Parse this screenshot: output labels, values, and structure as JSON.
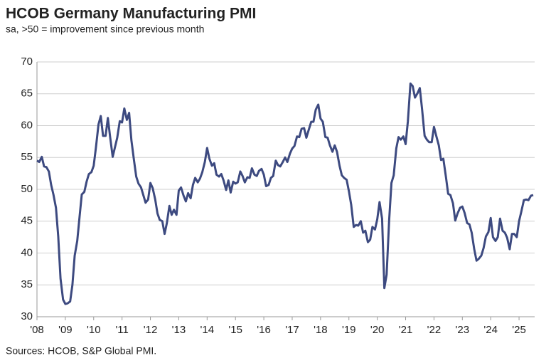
{
  "chart_data": {
    "type": "line",
    "title": "HCOB Germany Manufacturing PMI",
    "subtitle": "sa, >50 = improvement since previous month",
    "source": "Sources: HCOB, S&P Global PMI.",
    "x": [
      2008,
      2008.08,
      2008.17,
      2008.25,
      2008.33,
      2008.42,
      2008.5,
      2008.58,
      2008.67,
      2008.75,
      2008.83,
      2008.92,
      2009,
      2009.08,
      2009.17,
      2009.25,
      2009.33,
      2009.42,
      2009.5,
      2009.58,
      2009.67,
      2009.75,
      2009.83,
      2009.92,
      2010,
      2010.08,
      2010.17,
      2010.25,
      2010.33,
      2010.42,
      2010.5,
      2010.58,
      2010.67,
      2010.75,
      2010.83,
      2010.92,
      2011,
      2011.08,
      2011.17,
      2011.25,
      2011.33,
      2011.42,
      2011.5,
      2011.58,
      2011.67,
      2011.75,
      2011.83,
      2011.92,
      2012,
      2012.08,
      2012.17,
      2012.25,
      2012.33,
      2012.42,
      2012.5,
      2012.58,
      2012.67,
      2012.75,
      2012.83,
      2012.92,
      2013,
      2013.08,
      2013.17,
      2013.25,
      2013.33,
      2013.42,
      2013.5,
      2013.58,
      2013.67,
      2013.75,
      2013.83,
      2013.92,
      2014,
      2014.08,
      2014.17,
      2014.25,
      2014.33,
      2014.42,
      2014.5,
      2014.58,
      2014.67,
      2014.75,
      2014.83,
      2014.92,
      2015,
      2015.08,
      2015.17,
      2015.25,
      2015.33,
      2015.42,
      2015.5,
      2015.58,
      2015.67,
      2015.75,
      2015.83,
      2015.92,
      2016,
      2016.08,
      2016.17,
      2016.25,
      2016.33,
      2016.42,
      2016.5,
      2016.58,
      2016.67,
      2016.75,
      2016.83,
      2016.92,
      2017,
      2017.08,
      2017.17,
      2017.25,
      2017.33,
      2017.42,
      2017.5,
      2017.58,
      2017.67,
      2017.75,
      2017.83,
      2017.92,
      2018,
      2018.08,
      2018.17,
      2018.25,
      2018.33,
      2018.42,
      2018.5,
      2018.58,
      2018.67,
      2018.75,
      2018.83,
      2018.92,
      2019,
      2019.08,
      2019.17,
      2019.25,
      2019.33,
      2019.42,
      2019.5,
      2019.58,
      2019.67,
      2019.75,
      2019.83,
      2019.92,
      2020,
      2020.08,
      2020.17,
      2020.25,
      2020.33,
      2020.42,
      2020.5,
      2020.58,
      2020.67,
      2020.75,
      2020.83,
      2020.92,
      2021,
      2021.08,
      2021.17,
      2021.25,
      2021.33,
      2021.42,
      2021.5,
      2021.58,
      2021.67,
      2021.75,
      2021.83,
      2021.92,
      2022,
      2022.08,
      2022.17,
      2022.25,
      2022.33,
      2022.42,
      2022.5,
      2022.58,
      2022.67,
      2022.75,
      2022.83,
      2022.92,
      2023,
      2023.08,
      2023.17,
      2023.25,
      2023.33,
      2023.42,
      2023.5,
      2023.58,
      2023.67,
      2023.75,
      2023.83,
      2023.92,
      2024,
      2024.08,
      2024.17,
      2024.25,
      2024.33,
      2024.42,
      2024.5,
      2024.58,
      2024.67,
      2024.75,
      2024.83,
      2024.92,
      2025,
      2025.08,
      2025.17,
      2025.25,
      2025.33,
      2025.42,
      2025.5
    ],
    "series": [
      {
        "name": "PMI",
        "color": "#3d4a80",
        "values": [
          54.5,
          54.3,
          55.1,
          53.6,
          53.5,
          52.8,
          50.7,
          49.2,
          47.1,
          42.6,
          36.0,
          32.7,
          32.0,
          32.1,
          32.4,
          35.0,
          39.6,
          41.9,
          45.6,
          49.2,
          49.6,
          51.2,
          52.4,
          52.7,
          53.7,
          56.6,
          60.2,
          61.5,
          58.4,
          58.4,
          61.2,
          58.2,
          55.1,
          56.6,
          58.1,
          60.7,
          60.5,
          62.7,
          60.9,
          62.0,
          57.7,
          54.6,
          52.0,
          50.9,
          50.3,
          49.1,
          47.9,
          48.4,
          51.0,
          50.2,
          48.4,
          46.2,
          45.2,
          45.0,
          43.0,
          44.7,
          47.4,
          46.0,
          46.8,
          46.0,
          49.8,
          50.3,
          49.0,
          48.1,
          49.4,
          48.6,
          50.7,
          51.8,
          51.1,
          51.7,
          52.7,
          54.3,
          56.5,
          54.8,
          53.7,
          54.1,
          52.3,
          52.0,
          52.4,
          51.4,
          49.9,
          51.4,
          49.5,
          51.2,
          50.9,
          51.1,
          52.8,
          52.1,
          51.1,
          51.9,
          51.8,
          53.3,
          52.3,
          52.1,
          52.9,
          53.2,
          52.3,
          50.5,
          50.7,
          51.8,
          52.1,
          54.5,
          53.8,
          53.6,
          54.3,
          55.0,
          54.3,
          55.6,
          56.4,
          56.8,
          58.3,
          58.2,
          59.5,
          59.6,
          58.1,
          59.3,
          60.6,
          60.6,
          62.5,
          63.3,
          61.1,
          60.6,
          58.2,
          58.1,
          56.9,
          55.9,
          56.9,
          55.9,
          53.7,
          52.2,
          51.8,
          51.5,
          49.7,
          47.6,
          44.1,
          44.4,
          44.3,
          45.0,
          43.2,
          43.5,
          41.7,
          42.1,
          44.1,
          43.7,
          45.3,
          48.0,
          45.4,
          34.5,
          36.6,
          45.2,
          51.0,
          52.2,
          56.4,
          58.2,
          57.8,
          58.3,
          57.1,
          60.7,
          66.6,
          66.2,
          64.4,
          65.1,
          65.9,
          62.6,
          58.4,
          57.8,
          57.4,
          57.4,
          59.8,
          58.4,
          56.9,
          54.6,
          54.8,
          52.0,
          49.3,
          49.1,
          47.8,
          45.1,
          46.2,
          47.1,
          47.3,
          46.3,
          44.7,
          44.5,
          43.2,
          40.6,
          38.8,
          39.1,
          39.6,
          40.8,
          42.6,
          43.3,
          45.5,
          42.5,
          41.9,
          42.5,
          45.4,
          43.5,
          43.2,
          42.4,
          40.6,
          43.0,
          43.0,
          42.5,
          45.0,
          46.5,
          48.3,
          48.4,
          48.3,
          49.0,
          49.1
        ]
      }
    ],
    "xlim": [
      2008,
      2025.55
    ],
    "xticks": [
      {
        "value": 2008,
        "label": "'08"
      },
      {
        "value": 2009,
        "label": "'09"
      },
      {
        "value": 2010,
        "label": "'10"
      },
      {
        "value": 2011,
        "label": "'11"
      },
      {
        "value": 2012,
        "label": "'12"
      },
      {
        "value": 2013,
        "label": "'13"
      },
      {
        "value": 2014,
        "label": "'14"
      },
      {
        "value": 2015,
        "label": "'15"
      },
      {
        "value": 2016,
        "label": "'16"
      },
      {
        "value": 2017,
        "label": "'17"
      },
      {
        "value": 2018,
        "label": "'18"
      },
      {
        "value": 2019,
        "label": "'19"
      },
      {
        "value": 2020,
        "label": "'20"
      },
      {
        "value": 2021,
        "label": "'21"
      },
      {
        "value": 2022,
        "label": "'22"
      },
      {
        "value": 2023,
        "label": "'23"
      },
      {
        "value": 2024,
        "label": "'24"
      },
      {
        "value": 2025,
        "label": "'25"
      }
    ],
    "ylim": [
      30,
      70
    ],
    "yticks": [
      30,
      35,
      40,
      45,
      50,
      55,
      60,
      65,
      70
    ],
    "grid": true
  }
}
